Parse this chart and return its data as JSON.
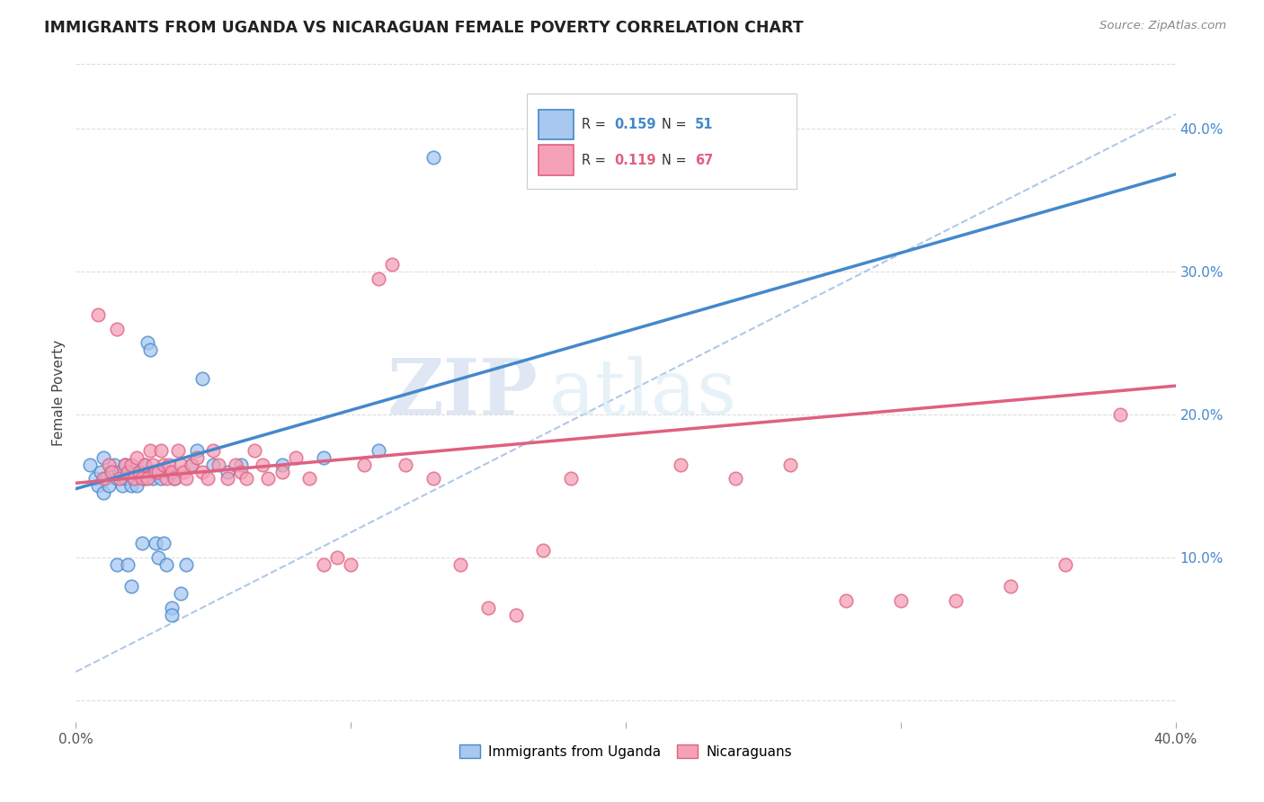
{
  "title": "IMMIGRANTS FROM UGANDA VS NICARAGUAN FEMALE POVERTY CORRELATION CHART",
  "source": "Source: ZipAtlas.com",
  "ylabel": "Female Poverty",
  "right_yticks": [
    "",
    "10.0%",
    "20.0%",
    "30.0%",
    "40.0%"
  ],
  "right_ytick_vals": [
    0.0,
    0.1,
    0.2,
    0.3,
    0.4
  ],
  "xlim": [
    0.0,
    0.4
  ],
  "ylim": [
    -0.015,
    0.445
  ],
  "color_uganda": "#A8C8F0",
  "color_nicaragua": "#F4A0B8",
  "line_color_uganda": "#4488CC",
  "line_color_nicaragua": "#E06080",
  "dashed_line_color": "#B0C8E8",
  "watermark_zip": "ZIP",
  "watermark_atlas": "atlas",
  "uganda_scatter_x": [
    0.005,
    0.007,
    0.008,
    0.009,
    0.01,
    0.01,
    0.011,
    0.012,
    0.013,
    0.014,
    0.015,
    0.015,
    0.016,
    0.017,
    0.018,
    0.018,
    0.019,
    0.02,
    0.02,
    0.021,
    0.022,
    0.022,
    0.023,
    0.024,
    0.025,
    0.025,
    0.026,
    0.027,
    0.028,
    0.029,
    0.03,
    0.03,
    0.031,
    0.032,
    0.033,
    0.034,
    0.035,
    0.035,
    0.036,
    0.038,
    0.04,
    0.042,
    0.044,
    0.046,
    0.05,
    0.055,
    0.06,
    0.075,
    0.09,
    0.11,
    0.13
  ],
  "uganda_scatter_y": [
    0.165,
    0.155,
    0.15,
    0.16,
    0.145,
    0.17,
    0.155,
    0.15,
    0.16,
    0.165,
    0.155,
    0.095,
    0.16,
    0.15,
    0.155,
    0.165,
    0.095,
    0.15,
    0.08,
    0.155,
    0.16,
    0.15,
    0.16,
    0.11,
    0.155,
    0.165,
    0.25,
    0.245,
    0.155,
    0.11,
    0.16,
    0.1,
    0.155,
    0.11,
    0.095,
    0.16,
    0.065,
    0.06,
    0.155,
    0.075,
    0.095,
    0.165,
    0.175,
    0.225,
    0.165,
    0.16,
    0.165,
    0.165,
    0.17,
    0.175,
    0.38
  ],
  "nicaragua_scatter_x": [
    0.008,
    0.01,
    0.012,
    0.013,
    0.015,
    0.016,
    0.018,
    0.019,
    0.02,
    0.021,
    0.022,
    0.023,
    0.024,
    0.025,
    0.026,
    0.027,
    0.028,
    0.029,
    0.03,
    0.031,
    0.032,
    0.033,
    0.034,
    0.035,
    0.036,
    0.037,
    0.038,
    0.039,
    0.04,
    0.042,
    0.044,
    0.046,
    0.048,
    0.05,
    0.052,
    0.055,
    0.058,
    0.06,
    0.062,
    0.065,
    0.068,
    0.07,
    0.075,
    0.08,
    0.085,
    0.09,
    0.095,
    0.1,
    0.105,
    0.11,
    0.115,
    0.12,
    0.13,
    0.14,
    0.15,
    0.16,
    0.17,
    0.18,
    0.22,
    0.24,
    0.26,
    0.28,
    0.3,
    0.32,
    0.34,
    0.36,
    0.38
  ],
  "nicaragua_scatter_y": [
    0.27,
    0.155,
    0.165,
    0.16,
    0.26,
    0.155,
    0.165,
    0.16,
    0.165,
    0.155,
    0.17,
    0.16,
    0.155,
    0.165,
    0.155,
    0.175,
    0.165,
    0.16,
    0.16,
    0.175,
    0.165,
    0.155,
    0.165,
    0.16,
    0.155,
    0.175,
    0.165,
    0.16,
    0.155,
    0.165,
    0.17,
    0.16,
    0.155,
    0.175,
    0.165,
    0.155,
    0.165,
    0.16,
    0.155,
    0.175,
    0.165,
    0.155,
    0.16,
    0.17,
    0.155,
    0.095,
    0.1,
    0.095,
    0.165,
    0.295,
    0.305,
    0.165,
    0.155,
    0.095,
    0.065,
    0.06,
    0.105,
    0.155,
    0.165,
    0.155,
    0.165,
    0.07,
    0.07,
    0.07,
    0.08,
    0.095,
    0.2
  ]
}
